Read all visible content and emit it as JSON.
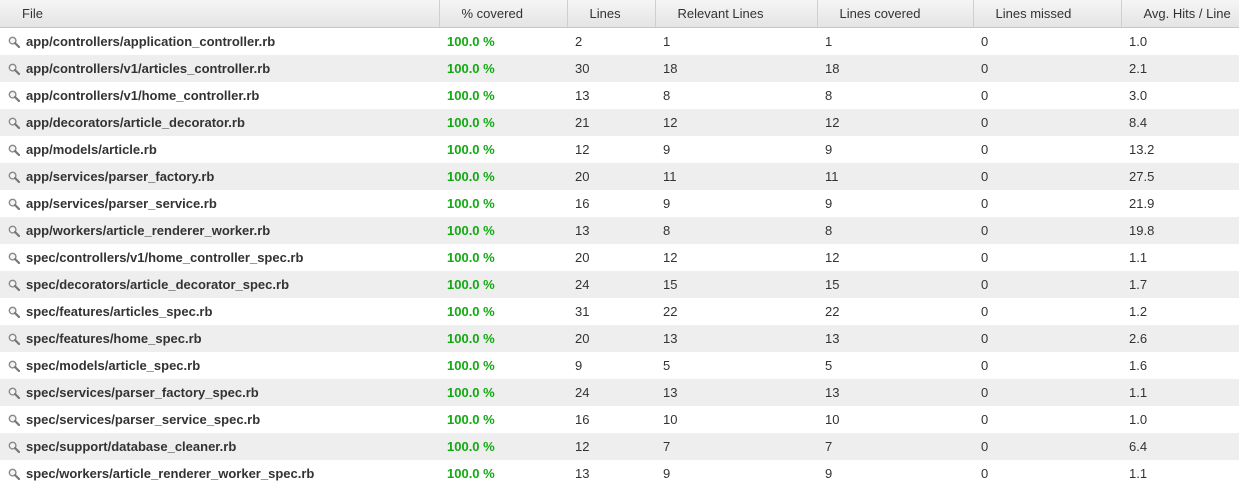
{
  "colors": {
    "covered_green": "#11aa11",
    "row_stripe": "#eeeeee",
    "header_bg": "#eaeaea"
  },
  "columns": [
    "File",
    "% covered",
    "Lines",
    "Relevant Lines",
    "Lines covered",
    "Lines missed",
    "Avg. Hits / Line"
  ],
  "rows": [
    {
      "file": "app/controllers/application_controller.rb",
      "pct": "100.0 %",
      "lines": "2",
      "relevant": "1",
      "covered": "1",
      "missed": "0",
      "avg": "1.0"
    },
    {
      "file": "app/controllers/v1/articles_controller.rb",
      "pct": "100.0 %",
      "lines": "30",
      "relevant": "18",
      "covered": "18",
      "missed": "0",
      "avg": "2.1"
    },
    {
      "file": "app/controllers/v1/home_controller.rb",
      "pct": "100.0 %",
      "lines": "13",
      "relevant": "8",
      "covered": "8",
      "missed": "0",
      "avg": "3.0"
    },
    {
      "file": "app/decorators/article_decorator.rb",
      "pct": "100.0 %",
      "lines": "21",
      "relevant": "12",
      "covered": "12",
      "missed": "0",
      "avg": "8.4"
    },
    {
      "file": "app/models/article.rb",
      "pct": "100.0 %",
      "lines": "12",
      "relevant": "9",
      "covered": "9",
      "missed": "0",
      "avg": "13.2"
    },
    {
      "file": "app/services/parser_factory.rb",
      "pct": "100.0 %",
      "lines": "20",
      "relevant": "11",
      "covered": "11",
      "missed": "0",
      "avg": "27.5"
    },
    {
      "file": "app/services/parser_service.rb",
      "pct": "100.0 %",
      "lines": "16",
      "relevant": "9",
      "covered": "9",
      "missed": "0",
      "avg": "21.9"
    },
    {
      "file": "app/workers/article_renderer_worker.rb",
      "pct": "100.0 %",
      "lines": "13",
      "relevant": "8",
      "covered": "8",
      "missed": "0",
      "avg": "19.8"
    },
    {
      "file": "spec/controllers/v1/home_controller_spec.rb",
      "pct": "100.0 %",
      "lines": "20",
      "relevant": "12",
      "covered": "12",
      "missed": "0",
      "avg": "1.1"
    },
    {
      "file": "spec/decorators/article_decorator_spec.rb",
      "pct": "100.0 %",
      "lines": "24",
      "relevant": "15",
      "covered": "15",
      "missed": "0",
      "avg": "1.7"
    },
    {
      "file": "spec/features/articles_spec.rb",
      "pct": "100.0 %",
      "lines": "31",
      "relevant": "22",
      "covered": "22",
      "missed": "0",
      "avg": "1.2"
    },
    {
      "file": "spec/features/home_spec.rb",
      "pct": "100.0 %",
      "lines": "20",
      "relevant": "13",
      "covered": "13",
      "missed": "0",
      "avg": "2.6"
    },
    {
      "file": "spec/models/article_spec.rb",
      "pct": "100.0 %",
      "lines": "9",
      "relevant": "5",
      "covered": "5",
      "missed": "0",
      "avg": "1.6"
    },
    {
      "file": "spec/services/parser_factory_spec.rb",
      "pct": "100.0 %",
      "lines": "24",
      "relevant": "13",
      "covered": "13",
      "missed": "0",
      "avg": "1.1"
    },
    {
      "file": "spec/services/parser_service_spec.rb",
      "pct": "100.0 %",
      "lines": "16",
      "relevant": "10",
      "covered": "10",
      "missed": "0",
      "avg": "1.0"
    },
    {
      "file": "spec/support/database_cleaner.rb",
      "pct": "100.0 %",
      "lines": "12",
      "relevant": "7",
      "covered": "7",
      "missed": "0",
      "avg": "6.4"
    },
    {
      "file": "spec/workers/article_renderer_worker_spec.rb",
      "pct": "100.0 %",
      "lines": "13",
      "relevant": "9",
      "covered": "9",
      "missed": "0",
      "avg": "1.1"
    }
  ]
}
